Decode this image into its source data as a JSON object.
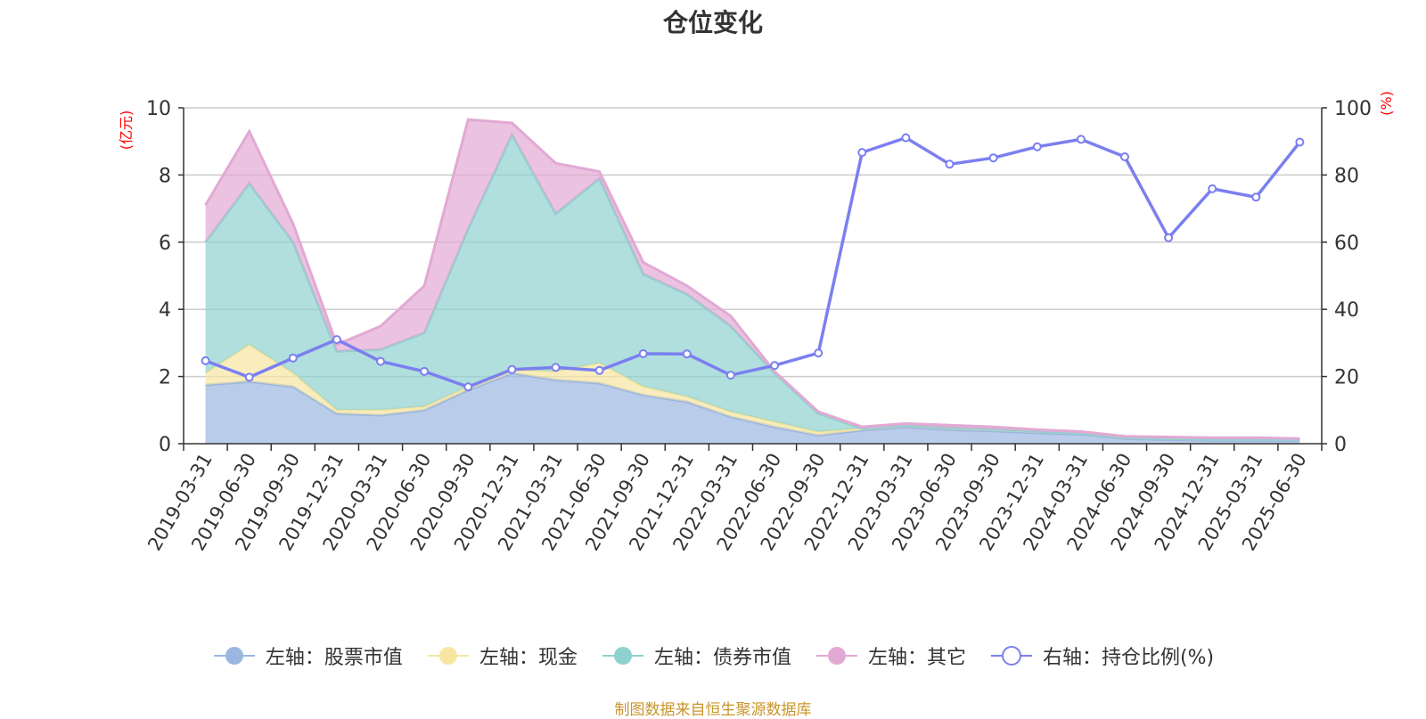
{
  "title": "仓位变化",
  "source_note": "制图数据来自恒生聚源数据库",
  "colors": {
    "stock": "#9bb6e0",
    "cash": "#f7e6a2",
    "bond": "#8fd1cf",
    "other": "#e2a9d4",
    "ratio": "#7b7ff0",
    "axis_label": "#ff0000"
  },
  "legend": [
    {
      "label": "左轴：股票市值",
      "key": "stock",
      "kind": "area"
    },
    {
      "label": "左轴：现金",
      "key": "cash",
      "kind": "area"
    },
    {
      "label": "左轴：债券市值",
      "key": "bond",
      "kind": "area"
    },
    {
      "label": "左轴：其它",
      "key": "other",
      "kind": "area"
    },
    {
      "label": "右轴：持仓比例(%)",
      "key": "ratio",
      "kind": "line"
    }
  ],
  "chart_data": {
    "type": "area",
    "title": "仓位变化",
    "stacked": true,
    "x": [
      "2019-03-31",
      "2019-06-30",
      "2019-09-30",
      "2019-12-31",
      "2020-03-31",
      "2020-06-30",
      "2020-09-30",
      "2020-12-31",
      "2021-03-31",
      "2021-06-30",
      "2021-09-30",
      "2021-12-31",
      "2022-03-31",
      "2022-06-30",
      "2022-09-30",
      "2022-12-31",
      "2023-03-31",
      "2023-06-30",
      "2023-09-30",
      "2023-12-31",
      "2024-03-31",
      "2024-06-30",
      "2024-09-30",
      "2024-12-31",
      "2025-03-31",
      "2025-06-30"
    ],
    "left_axis": {
      "label": "(亿元)",
      "ylim": [
        0,
        10
      ],
      "ticks": [
        0,
        2,
        4,
        6,
        8,
        10
      ]
    },
    "right_axis": {
      "label": "(%)",
      "ylim": [
        0,
        100
      ],
      "ticks": [
        0,
        20,
        40,
        60,
        80,
        100
      ]
    },
    "grid": true,
    "legend_position": "bottom",
    "series": [
      {
        "name": "左轴：股票市值",
        "key": "stock",
        "axis": "left",
        "values": [
          1.75,
          1.85,
          1.7,
          0.9,
          0.85,
          1.0,
          1.6,
          2.1,
          1.9,
          1.8,
          1.45,
          1.25,
          0.8,
          0.5,
          0.25,
          0.4,
          0.5,
          0.42,
          0.38,
          0.32,
          0.28,
          0.15,
          0.12,
          0.1,
          0.1,
          0.1
        ]
      },
      {
        "name": "左轴：现金",
        "key": "cash",
        "axis": "left",
        "values": [
          0.35,
          1.1,
          0.4,
          0.1,
          0.15,
          0.1,
          0.1,
          0.1,
          0.25,
          0.6,
          0.25,
          0.15,
          0.15,
          0.15,
          0.1,
          0.05,
          0.05,
          0.05,
          0.05,
          0.05,
          0.03,
          0.03,
          0.03,
          0.03,
          0.03,
          0.03
        ]
      },
      {
        "name": "左轴：债券市值",
        "key": "bond",
        "axis": "left",
        "values": [
          3.9,
          4.8,
          3.9,
          1.75,
          1.8,
          2.2,
          4.7,
          7.0,
          4.7,
          5.5,
          3.35,
          3.05,
          2.55,
          1.45,
          0.55,
          0,
          0,
          0,
          0,
          0,
          0,
          0,
          0,
          0,
          0,
          0
        ]
      },
      {
        "name": "左轴：其它",
        "key": "other",
        "axis": "left",
        "values": [
          1.1,
          1.55,
          0.55,
          0.2,
          0.7,
          1.4,
          3.25,
          0.35,
          1.5,
          0.2,
          0.35,
          0.25,
          0.3,
          0.05,
          0.05,
          0.05,
          0.05,
          0.08,
          0.07,
          0.05,
          0.05,
          0.04,
          0.05,
          0.05,
          0.05,
          0.02
        ]
      },
      {
        "name": "右轴：持仓比例(%)",
        "key": "ratio",
        "axis": "right",
        "values": [
          24.7,
          19.8,
          25.5,
          31.0,
          24.5,
          21.5,
          16.9,
          22.1,
          22.7,
          21.8,
          26.8,
          26.7,
          20.4,
          23.3,
          27.0,
          86.7,
          91.1,
          83.2,
          85.1,
          88.4,
          90.6,
          85.4,
          61.3,
          75.9,
          73.4,
          89.8
        ]
      }
    ]
  }
}
